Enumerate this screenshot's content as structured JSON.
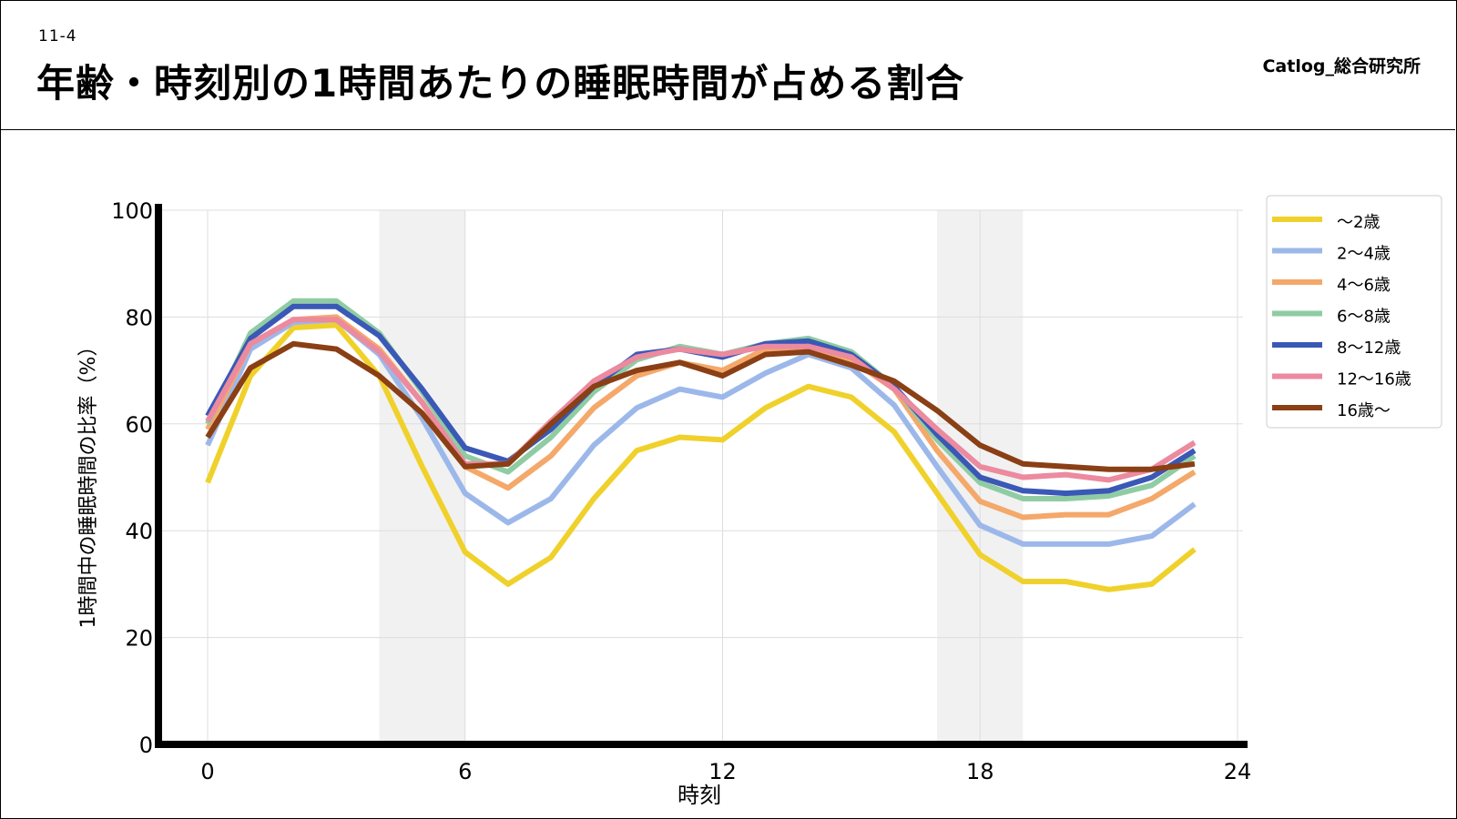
{
  "header": {
    "section": "11-4",
    "title": "年齢・時刻別の1時間あたりの睡眠時間が占める割合",
    "brand": "Catlog_総合研究所"
  },
  "chart_data": {
    "type": "line",
    "xlabel": "時刻",
    "ylabel": "1時間中の睡眠時間の比率（%）",
    "xlim": [
      -1,
      24
    ],
    "ylim": [
      0,
      100
    ],
    "xticks": [
      0,
      6,
      12,
      18,
      24
    ],
    "yticks": [
      0,
      20,
      40,
      60,
      80,
      100
    ],
    "grid": true,
    "legend": "top-right",
    "shaded_bands": [
      [
        4,
        6
      ],
      [
        17,
        19
      ]
    ],
    "x": [
      0,
      1,
      2,
      3,
      4,
      5,
      6,
      7,
      8,
      9,
      10,
      11,
      12,
      13,
      14,
      15,
      16,
      17,
      18,
      19,
      20,
      21,
      22,
      23
    ],
    "series": [
      {
        "name": "〜2歳",
        "color": "#f0d12b",
        "values": [
          49,
          69,
          78,
          78.5,
          69,
          52,
          36,
          30,
          35,
          46,
          55,
          57.5,
          57,
          63,
          67,
          65,
          58.5,
          47,
          35.5,
          30.5,
          30.5,
          29,
          30,
          36.5
        ]
      },
      {
        "name": "2〜4歳",
        "color": "#9cb8ea",
        "values": [
          56,
          74,
          79,
          79.5,
          73,
          61,
          47,
          41.5,
          46,
          56,
          63,
          66.5,
          65,
          69.5,
          73,
          70.5,
          63.5,
          52,
          41,
          37.5,
          37.5,
          37.5,
          39,
          45
        ]
      },
      {
        "name": "4〜6歳",
        "color": "#f4a86a",
        "values": [
          59,
          75,
          79.5,
          80,
          74,
          64,
          52,
          48,
          54,
          63,
          69,
          71.5,
          70,
          74,
          74.5,
          72,
          66.5,
          55,
          45.5,
          42.5,
          43,
          43,
          46,
          51
        ]
      },
      {
        "name": "6〜8歳",
        "color": "#8fcca3",
        "values": [
          60,
          77,
          83,
          83,
          77,
          66,
          54,
          51,
          57.5,
          66,
          72,
          74.5,
          73,
          75,
          76,
          73.5,
          67,
          57,
          49,
          46,
          46,
          46.5,
          48.5,
          54
        ]
      },
      {
        "name": "8〜12歳",
        "color": "#3a58b6",
        "values": [
          61.5,
          76,
          82,
          82,
          76.5,
          66.5,
          55.5,
          53,
          59,
          67,
          73,
          74,
          72.5,
          75,
          75.5,
          73,
          67,
          58,
          50,
          47.5,
          47,
          47.5,
          50,
          55
        ]
      },
      {
        "name": "12〜16歳",
        "color": "#ec8a9f",
        "values": [
          60.5,
          75,
          79.5,
          79.5,
          73.5,
          64,
          52.5,
          52.5,
          60.5,
          68,
          72.5,
          74,
          73,
          74.5,
          74.5,
          72.5,
          66.5,
          59,
          52,
          50,
          50.5,
          49.5,
          51.5,
          56.5
        ]
      },
      {
        "name": "16歳〜",
        "color": "#8a3f14",
        "values": [
          57.5,
          70.5,
          75,
          74,
          69,
          62,
          52,
          52.5,
          60,
          67,
          70,
          71.5,
          69,
          73,
          73.5,
          71,
          68,
          62.5,
          56,
          52.5,
          52,
          51.5,
          51.5,
          52.5
        ]
      }
    ]
  }
}
